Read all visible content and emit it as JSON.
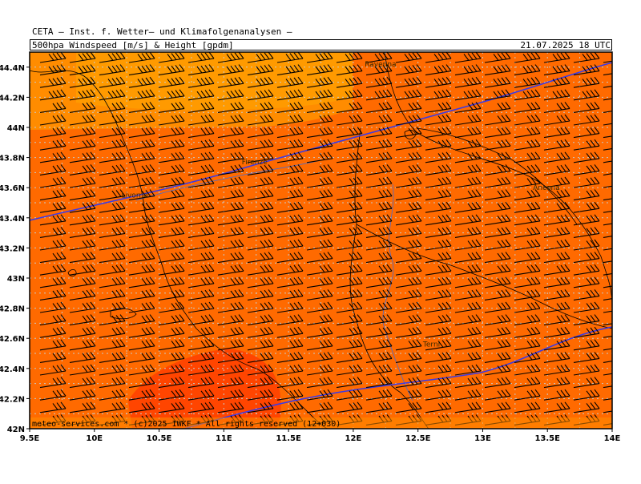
{
  "header": {
    "title": "CETA — Inst. f. Wetter— und Klimafolgenanalysen —",
    "subtitle": "500hpa_Windspeed_[m/s]_&_Height_[gpdm]",
    "valid_time": "21.07.2025 18 UTC"
  },
  "footer": {
    "credit": "meteo-services.com * (c)2025 IWKF * All rights reserved (12+030)"
  },
  "map": {
    "lon_range": [
      9.5,
      14.0
    ],
    "lat_range": [
      42.0,
      44.5
    ],
    "lon_ticks": [
      "9.5E",
      "10E",
      "10.5E",
      "11E",
      "11.5E",
      "12E",
      "12.5E",
      "13E",
      "13.5E",
      "14E"
    ],
    "lat_ticks": [
      "42N",
      "42.2N",
      "42.4N",
      "42.6N",
      "42.8N",
      "43N",
      "43.2N",
      "43.4N",
      "43.6N",
      "43.8N",
      "44N",
      "44.2N",
      "44.4N"
    ],
    "cities": [
      {
        "name": "Ravenna",
        "lon": 12.2,
        "lat": 44.42
      },
      {
        "name": "Firenze",
        "lon": 11.25,
        "lat": 43.77
      },
      {
        "name": "Livorno",
        "lon": 10.32,
        "lat": 43.55
      },
      {
        "name": "Ancona",
        "lon": 13.5,
        "lat": 43.6
      },
      {
        "name": "Terni",
        "lon": 12.65,
        "lat": 42.56
      }
    ],
    "colors": {
      "wind_light": "#ff8c00",
      "wind_mid": "#ff6a00",
      "wind_strong": "#ff4500",
      "wind_pale": "#ff9a00",
      "height_contour": "#3a3ae8",
      "coastline": "#000000",
      "rivers": "#4a6ad0",
      "grid": "#c8c8c8"
    }
  }
}
